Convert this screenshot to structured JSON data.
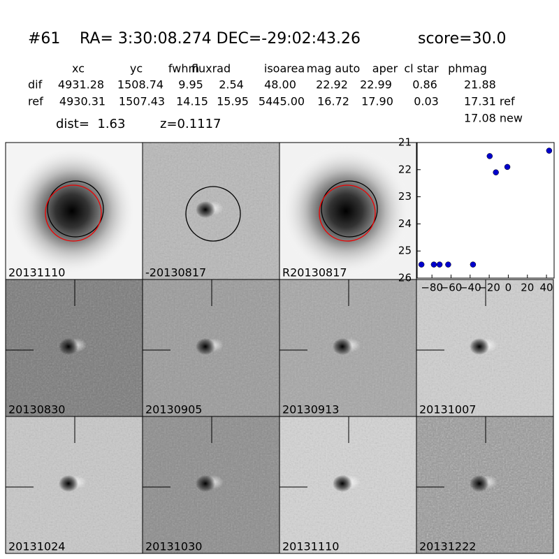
{
  "header": {
    "id": "#61",
    "coords": "RA= 3:30:08.274 DEC=-29:02:43.26",
    "score": "score=30.0"
  },
  "table": {
    "columns": [
      "xc",
      "yc",
      "fwhm",
      "fluxrad",
      "isoarea",
      "mag auto",
      "aper",
      "cl star",
      "phmag"
    ],
    "rows": [
      [
        "dif",
        "4931.28",
        "1508.74",
        "9.95",
        "2.54",
        "48.00",
        "22.92",
        "22.99",
        "0.86",
        "21.88"
      ],
      [
        "ref",
        "4930.31",
        "1507.43",
        "14.15",
        "15.95",
        "5445.00",
        "16.72",
        "17.90",
        "0.03",
        "17.31 ref"
      ]
    ],
    "extra": "17.08 new"
  },
  "dist": "dist=  1.63",
  "redshift": "z=0.1117",
  "stamps": [
    {
      "label": "20131110"
    },
    {
      "label": "-20130817"
    },
    {
      "label": "R20130817"
    },
    {
      "label": "20130830"
    },
    {
      "label": "20130905"
    },
    {
      "label": "20130913"
    },
    {
      "label": "20131007"
    },
    {
      "label": "20131024"
    },
    {
      "label": "20131030"
    },
    {
      "label": "20131110",
      "label_color": "#ff0000"
    },
    {
      "label": "20131222"
    }
  ],
  "chart_data": {
    "type": "scatter",
    "x": [
      -91,
      -78,
      -72,
      -63,
      -37,
      -19.5,
      -13,
      -1,
      42.8
    ],
    "values": [
      25.5,
      25.5,
      25.5,
      25.5,
      25.5,
      21.5,
      22.1,
      21.9,
      21.3
    ],
    "errors": [
      0.08,
      0.08,
      0.08,
      0.08,
      0.08,
      0.1,
      0.1,
      0.06,
      0.06
    ],
    "color": "#0000cc",
    "xlim": [
      -95.5,
      48
    ],
    "ylim": [
      26,
      21
    ],
    "xticks": [
      {
        "value": -80,
        "label": "−80"
      },
      {
        "value": -60,
        "label": "−60"
      },
      {
        "value": -40,
        "label": "−40"
      },
      {
        "value": -20,
        "label": "−20"
      },
      0,
      20,
      40
    ],
    "yticks": [
      21,
      22,
      23,
      24,
      25,
      26
    ]
  }
}
